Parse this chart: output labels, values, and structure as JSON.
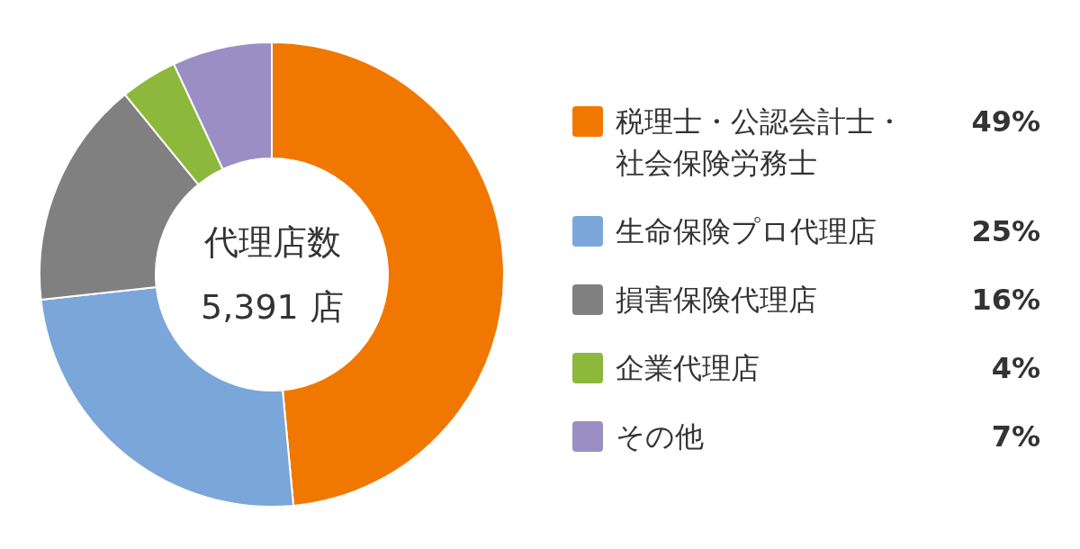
{
  "chart_data": {
    "type": "donut",
    "categories": [
      "税理士・公認会計士・社会保険労務士",
      "生命保険プロ代理店",
      "損害保険代理店",
      "企業代理店",
      "その他"
    ],
    "values": [
      49,
      25,
      16,
      4,
      7
    ],
    "value_labels": [
      "49%",
      "25%",
      "16%",
      "4%",
      "7%"
    ],
    "colors": [
      "#f07800",
      "#7aa6d9",
      "#808080",
      "#8cb83c",
      "#9b8ec4"
    ],
    "annotations": [
      "代理店数",
      "5,391 店"
    ],
    "legend": "right"
  }
}
